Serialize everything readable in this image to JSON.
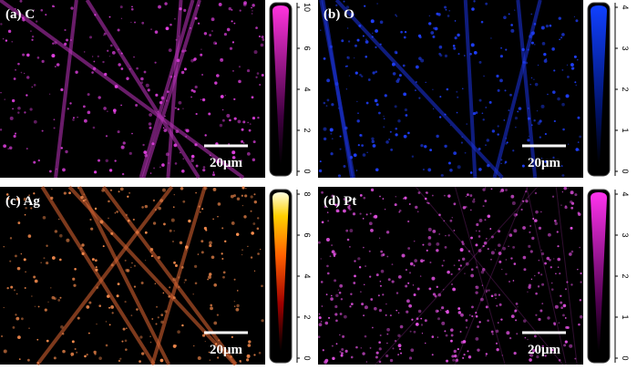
{
  "panels": [
    {
      "label": "(a) C",
      "scale_bar": "20μm",
      "colorbar_ticks": [
        "10",
        "6",
        "4",
        "2",
        "0"
      ]
    },
    {
      "label": "(b) O",
      "scale_bar": "20μm",
      "colorbar_ticks": [
        "4",
        "3",
        "2",
        "1",
        "0"
      ]
    },
    {
      "label": "(c) Ag",
      "scale_bar": "20μm",
      "colorbar_ticks": [
        "8",
        "6",
        "4",
        "2",
        "0"
      ]
    },
    {
      "label": "(d) Pt",
      "scale_bar": "20μm",
      "colorbar_ticks": [
        "4",
        "3",
        "2",
        "1",
        "0"
      ]
    }
  ]
}
